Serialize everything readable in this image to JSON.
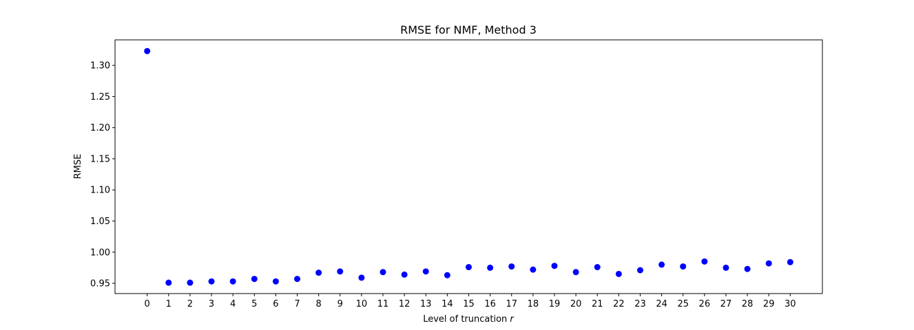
{
  "chart_data": {
    "type": "scatter",
    "title": "RMSE for NMF, Method 3",
    "xlabel": "Level of truncation ",
    "xlabel_var": "r",
    "ylabel": "RMSE",
    "xlim": [
      -1.5,
      31.5
    ],
    "ylim": [
      0.9335,
      1.341
    ],
    "xticks": [
      0,
      1,
      2,
      3,
      4,
      5,
      6,
      7,
      8,
      9,
      10,
      11,
      12,
      13,
      14,
      15,
      16,
      17,
      18,
      19,
      20,
      21,
      22,
      23,
      24,
      25,
      26,
      27,
      28,
      29,
      30
    ],
    "yticks": [
      0.95,
      1.0,
      1.05,
      1.1,
      1.15,
      1.2,
      1.25,
      1.3
    ],
    "ytick_labels": [
      "0.95",
      "1.00",
      "1.05",
      "1.10",
      "1.15",
      "1.20",
      "1.25",
      "1.30"
    ],
    "grid": false,
    "marker_color": "#0000ff",
    "x": [
      0,
      1,
      2,
      3,
      4,
      5,
      6,
      7,
      8,
      9,
      10,
      11,
      12,
      13,
      14,
      15,
      16,
      17,
      18,
      19,
      20,
      21,
      22,
      23,
      24,
      25,
      26,
      27,
      28,
      29,
      30
    ],
    "y": [
      1.323,
      0.951,
      0.951,
      0.953,
      0.953,
      0.957,
      0.953,
      0.957,
      0.967,
      0.969,
      0.959,
      0.968,
      0.964,
      0.969,
      0.963,
      0.976,
      0.975,
      0.977,
      0.972,
      0.978,
      0.968,
      0.976,
      0.965,
      0.971,
      0.98,
      0.977,
      0.985,
      0.975,
      0.973,
      0.982,
      0.984
    ]
  }
}
